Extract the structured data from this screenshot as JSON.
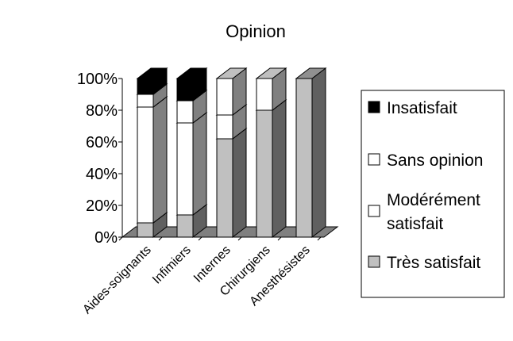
{
  "chart_data": {
    "type": "bar",
    "stacked": true,
    "three_d": true,
    "title": "Opinion",
    "xlabel": "",
    "ylabel": "",
    "ylim": [
      0,
      100
    ],
    "yticks": [
      "0%",
      "20%",
      "40%",
      "60%",
      "80%",
      "100%"
    ],
    "categories": [
      "Aides-soignants",
      "Infimiers",
      "Internes",
      "Chirurgiens",
      "Anesthésistes"
    ],
    "series": [
      {
        "name": "Très satisfait",
        "color": "#c0c0c0",
        "values": [
          9,
          14,
          62,
          80,
          100
        ]
      },
      {
        "name": "Modérément satisfait",
        "color": "#ffffff",
        "values": [
          73,
          58,
          15,
          0,
          0
        ]
      },
      {
        "name": "Sans opinion",
        "color": "#ffffff",
        "values": [
          8,
          14,
          23,
          20,
          0
        ]
      },
      {
        "name": "Insatisfait",
        "color": "#000000",
        "values": [
          10,
          14,
          0,
          0,
          0
        ]
      }
    ],
    "legend": {
      "position": "right",
      "entries": [
        {
          "label": "Insatisfait",
          "color": "#000000"
        },
        {
          "label": "Sans opinion",
          "color": "#ffffff"
        },
        {
          "label": "Modérément satisfait",
          "label_lines": [
            "Modérément",
            "satisfait"
          ],
          "color": "#ffffff"
        },
        {
          "label": "Très satisfait",
          "color": "#c0c0c0"
        }
      ]
    },
    "grid": false
  }
}
